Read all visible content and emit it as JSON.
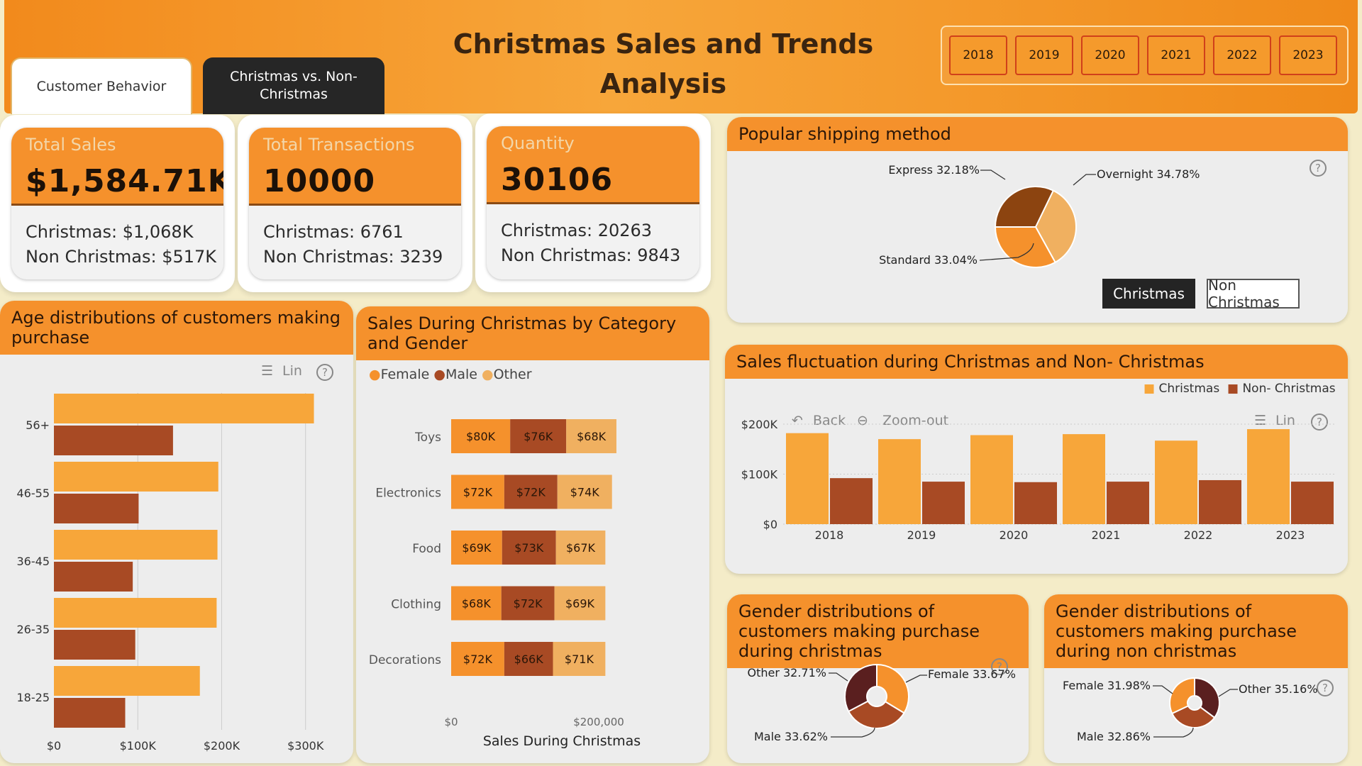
{
  "header": {
    "title": "Christmas Sales and Trends Analysis",
    "tabs": [
      {
        "label": "Customer Behavior"
      },
      {
        "label": "Christmas vs. Non-Christmas"
      }
    ],
    "years": [
      "2018",
      "2019",
      "2020",
      "2021",
      "2022",
      "2023"
    ]
  },
  "kpis": [
    {
      "label": "Total Sales",
      "value": "$1,584.71K",
      "line1": "Christmas: $1,068K",
      "line2": "Non Christmas: $517K"
    },
    {
      "label": "Total Transactions",
      "value": "10000",
      "line1": "Christmas: 6761",
      "line2": "Non Christmas: 3239"
    },
    {
      "label": "Quantity",
      "value": "30106",
      "line1": "Christmas: 20263",
      "line2": "Non Christmas: 9843"
    }
  ],
  "colors": {
    "orange": "#f5912c",
    "light_orange": "#f7a63a",
    "tan": "#f0b060",
    "brown": "#a84a24",
    "dark_brown": "#8c4410",
    "maroon": "#5a1f1f"
  },
  "shipping": {
    "title": "Popular shipping method",
    "toggle": [
      "Christmas",
      "Non Christmas"
    ]
  },
  "age_chart": {
    "title": "Age distributions of customers making purchase",
    "control": "Lin"
  },
  "category_chart": {
    "title": "Sales During Christmas by Category and Gender",
    "legend": [
      "Female",
      "Male",
      "Other"
    ]
  },
  "fluct_chart": {
    "title": "Sales fluctuation during Christmas and Non- Christmas",
    "legend": [
      "Christmas",
      "Non- Christmas"
    ],
    "back": "Back",
    "zoom": "Zoom-out",
    "control": "Lin"
  },
  "gender_xmas": {
    "title": "Gender distributions of customers making purchase during christmas"
  },
  "gender_non": {
    "title": "Gender distributions of customers making purchase during non christmas"
  },
  "chart_data": [
    {
      "type": "pie",
      "title": "Popular shipping method",
      "labels": [
        "Express",
        "Overnight",
        "Standard"
      ],
      "values": [
        32.18,
        34.78,
        33.04
      ],
      "display": [
        "Express 32.18%",
        "Overnight 34.78%",
        "Standard 33.04%"
      ],
      "colors": [
        "#8c4410",
        "#f0b060",
        "#f5912c"
      ]
    },
    {
      "type": "bar",
      "orientation": "horizontal",
      "title": "Age distributions of customers making purchase",
      "categories": [
        "56+",
        "46-55",
        "36-45",
        "26-35",
        "18-25"
      ],
      "series": [
        {
          "values": [
            310000,
            196000,
            195000,
            194000,
            174000
          ],
          "color": "#f7a63a"
        },
        {
          "values": [
            142000,
            101000,
            94000,
            97000,
            85000
          ],
          "color": "#a84a24"
        }
      ],
      "xticks": [
        "$0",
        "$100K",
        "$200K",
        "$300K"
      ],
      "xlim": [
        0,
        340000
      ]
    },
    {
      "type": "bar",
      "stacked": true,
      "orientation": "horizontal",
      "title": "Sales During Christmas by Category and Gender",
      "xlabel": "Sales During Christmas",
      "categories": [
        "Toys",
        "Electronics",
        "Food",
        "Clothing",
        "Decorations"
      ],
      "series": [
        {
          "name": "Female",
          "values": [
            80,
            72,
            69,
            68,
            72
          ],
          "labels": [
            "$80K",
            "$72K",
            "$69K",
            "$68K",
            "$72K"
          ],
          "color": "#f5912c"
        },
        {
          "name": "Male",
          "values": [
            76,
            72,
            73,
            72,
            66
          ],
          "labels": [
            "$76K",
            "$72K",
            "$73K",
            "$72K",
            "$66K"
          ],
          "color": "#a84a24"
        },
        {
          "name": "Other",
          "values": [
            68,
            74,
            67,
            69,
            71
          ],
          "labels": [
            "$68K",
            "$74K",
            "$67K",
            "$69K",
            "$71K"
          ],
          "color": "#f0b060"
        }
      ],
      "xticks": [
        "$0",
        "$200,000"
      ],
      "xlim": [
        0,
        240
      ]
    },
    {
      "type": "bar",
      "title": "Sales fluctuation during Christmas and Non- Christmas",
      "categories": [
        "2018",
        "2019",
        "2020",
        "2021",
        "2022",
        "2023"
      ],
      "series": [
        {
          "name": "Christmas",
          "values": [
            182000,
            170000,
            178000,
            180000,
            167000,
            190000
          ],
          "color": "#f7a63a"
        },
        {
          "name": "Non- Christmas",
          "values": [
            92000,
            85000,
            84000,
            85000,
            88000,
            85000
          ],
          "color": "#a84a24"
        }
      ],
      "yticks": [
        "$0",
        "$100K",
        "$200K"
      ],
      "ylim": [
        0,
        200000
      ]
    },
    {
      "type": "pie",
      "title": "Gender distributions of customers making purchase during christmas",
      "labels": [
        "Female",
        "Male",
        "Other"
      ],
      "values": [
        33.67,
        33.62,
        32.71
      ],
      "display": [
        "Female 33.67%",
        "Male 33.62%",
        "Other 32.71%"
      ],
      "colors": [
        "#f5912c",
        "#a84a24",
        "#5a1f1f"
      ]
    },
    {
      "type": "pie",
      "title": "Gender distributions of customers making purchase during non christmas",
      "labels": [
        "Other",
        "Male",
        "Female"
      ],
      "values": [
        35.16,
        32.86,
        31.98
      ],
      "display": [
        "Other 35.16%",
        "Male 32.86%",
        "Female 31.98%"
      ],
      "colors": [
        "#5a1f1f",
        "#a84a24",
        "#f5912c"
      ]
    }
  ]
}
